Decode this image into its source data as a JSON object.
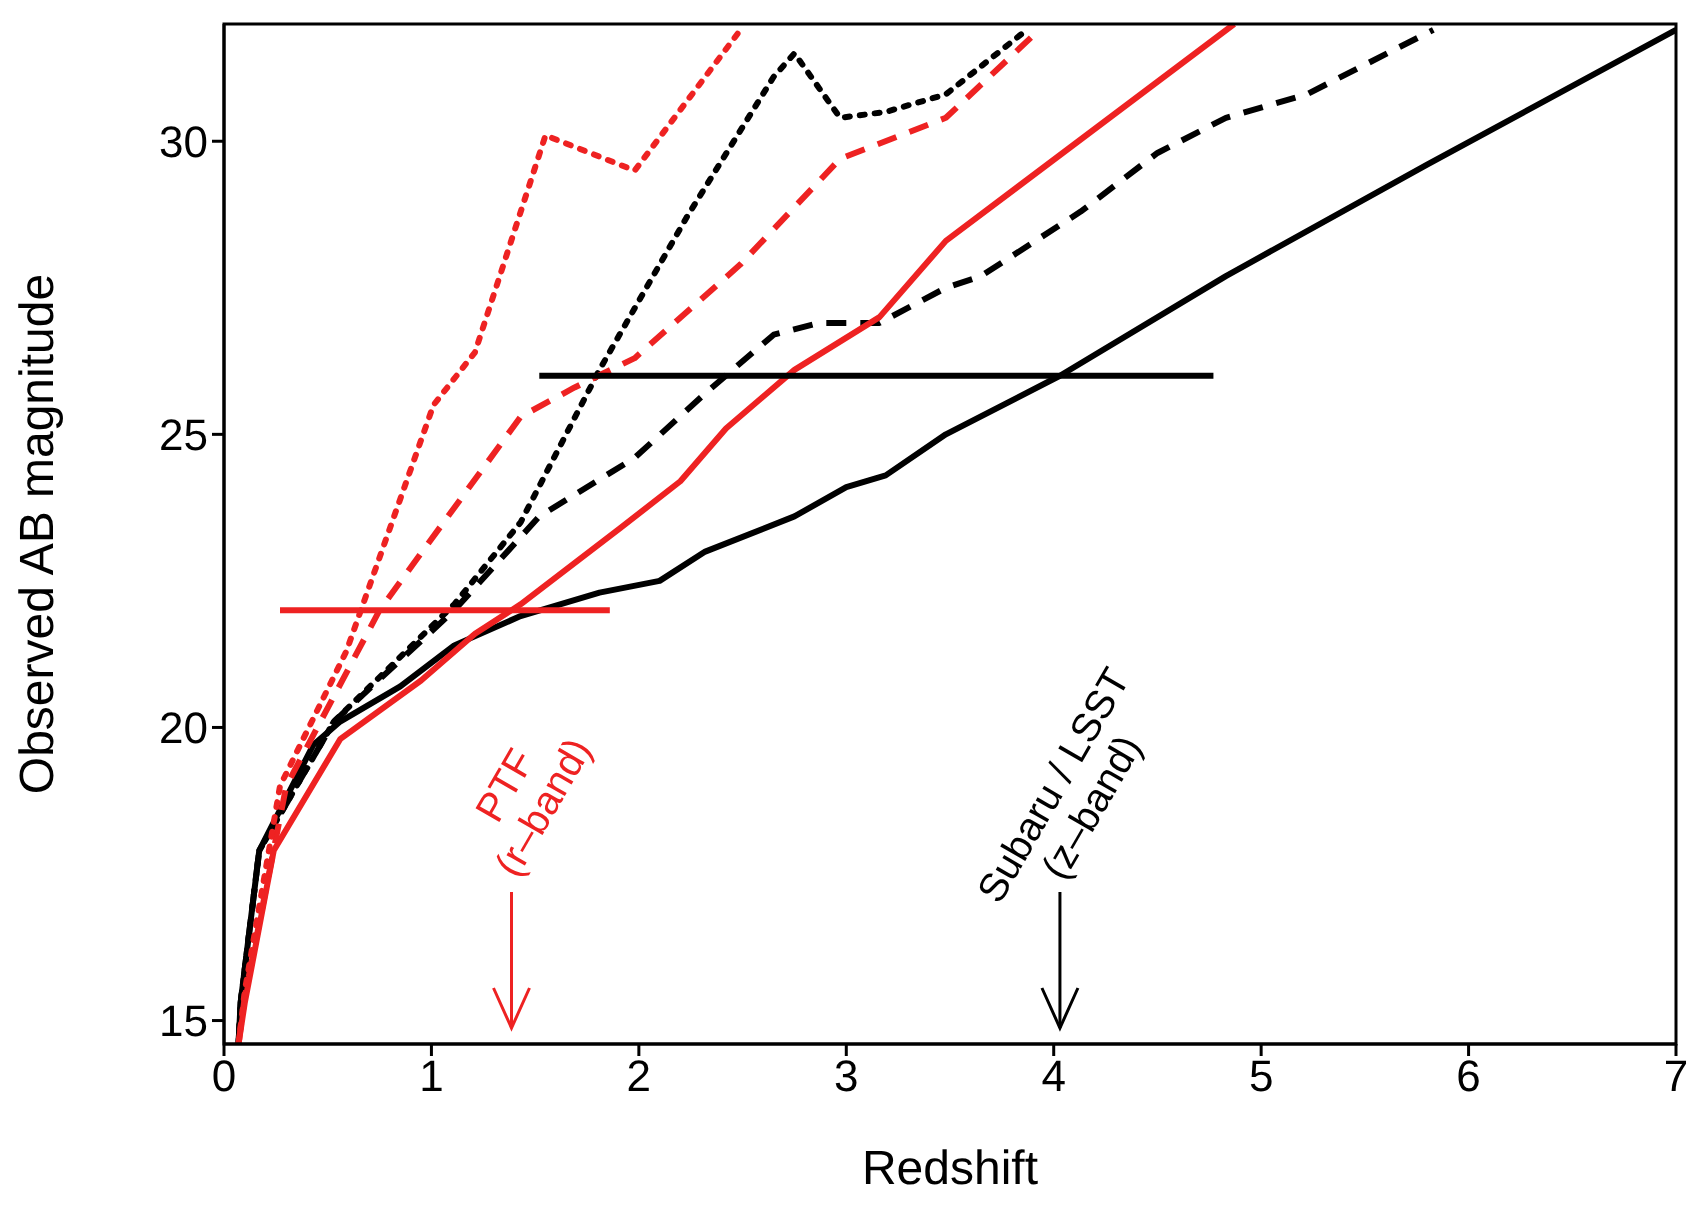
{
  "chart_data": {
    "type": "line",
    "xlabel": "Redshift",
    "ylabel": "Observed AB magnitude",
    "xlim": [
      0,
      7
    ],
    "ylim": [
      14.6,
      32
    ],
    "xticks": [
      0,
      1,
      2,
      3,
      4,
      5,
      6,
      7
    ],
    "yticks": [
      15,
      20,
      25,
      30
    ],
    "marker": "none",
    "series": [
      {
        "color": "#000000",
        "line_style": "solid",
        "x": [
          0.07,
          0.08,
          0.17,
          0.43,
          0.56,
          0.85,
          1.11,
          1.43,
          1.81,
          2.1,
          2.32,
          2.75,
          3.0,
          3.19,
          3.48,
          4.03,
          4.83,
          5.8,
          7.0
        ],
        "values": [
          14.6,
          15.3,
          17.9,
          19.7,
          20.1,
          20.7,
          21.4,
          21.9,
          22.3,
          22.5,
          23.0,
          23.6,
          24.1,
          24.3,
          25.0,
          26.0,
          27.7,
          29.6,
          31.9
        ]
      },
      {
        "color": "#000000",
        "line_style": "dashed",
        "x": [
          0.07,
          0.08,
          0.17,
          0.53,
          1.11,
          1.52,
          1.98,
          2.32,
          2.65,
          2.87,
          3.16,
          3.48,
          3.65,
          4.13,
          4.5,
          4.83,
          5.22,
          5.83
        ],
        "values": [
          14.6,
          15.3,
          17.9,
          20.1,
          22.0,
          23.6,
          24.6,
          25.7,
          26.7,
          26.9,
          26.9,
          27.5,
          27.7,
          28.8,
          29.8,
          30.4,
          30.8,
          31.9
        ]
      },
      {
        "color": "#000000",
        "line_style": "dotted",
        "x": [
          0.07,
          0.08,
          0.17,
          0.53,
          1.11,
          1.43,
          1.81,
          2.23,
          2.65,
          2.75,
          2.97,
          3.19,
          3.48,
          3.87
        ],
        "values": [
          14.6,
          15.3,
          17.9,
          20.1,
          22.1,
          23.5,
          26.1,
          28.7,
          31.1,
          31.5,
          30.4,
          30.5,
          30.8,
          31.9
        ]
      },
      {
        "color": "#ee2222",
        "line_style": "solid",
        "x": [
          0.07,
          0.1,
          0.24,
          0.56,
          0.95,
          1.21,
          1.43,
          1.91,
          2.2,
          2.42,
          2.75,
          3.16,
          3.48,
          4.87
        ],
        "values": [
          14.6,
          15.3,
          17.9,
          19.8,
          20.8,
          21.6,
          22.1,
          23.4,
          24.2,
          25.1,
          26.1,
          27.0,
          28.3,
          32.0
        ]
      },
      {
        "color": "#ee2222",
        "line_style": "dashed",
        "x": [
          0.07,
          0.1,
          0.3,
          0.75,
          1.43,
          1.69,
          1.98,
          2.49,
          2.97,
          3.48,
          3.93
        ],
        "values": [
          14.6,
          15.4,
          19.0,
          22.0,
          25.3,
          25.8,
          26.3,
          27.9,
          29.7,
          30.4,
          31.9
        ]
      },
      {
        "color": "#ee2222",
        "line_style": "dotted",
        "x": [
          0.07,
          0.1,
          0.27,
          0.59,
          1.01,
          1.21,
          1.55,
          1.98,
          2.49
        ],
        "values": [
          14.6,
          15.5,
          19.0,
          21.3,
          25.5,
          26.4,
          30.1,
          29.5,
          31.9
        ]
      },
      {
        "color": "#ee2222",
        "line_style": "solid",
        "x": [
          0.27,
          1.86
        ],
        "values": [
          22,
          22
        ]
      },
      {
        "color": "#000000",
        "line_style": "solid",
        "x": [
          1.52,
          4.77
        ],
        "values": [
          26,
          26
        ]
      }
    ],
    "annotations": [
      "PTF\n(r–band)",
      "Subaru / LSST\n(z–band)"
    ]
  }
}
